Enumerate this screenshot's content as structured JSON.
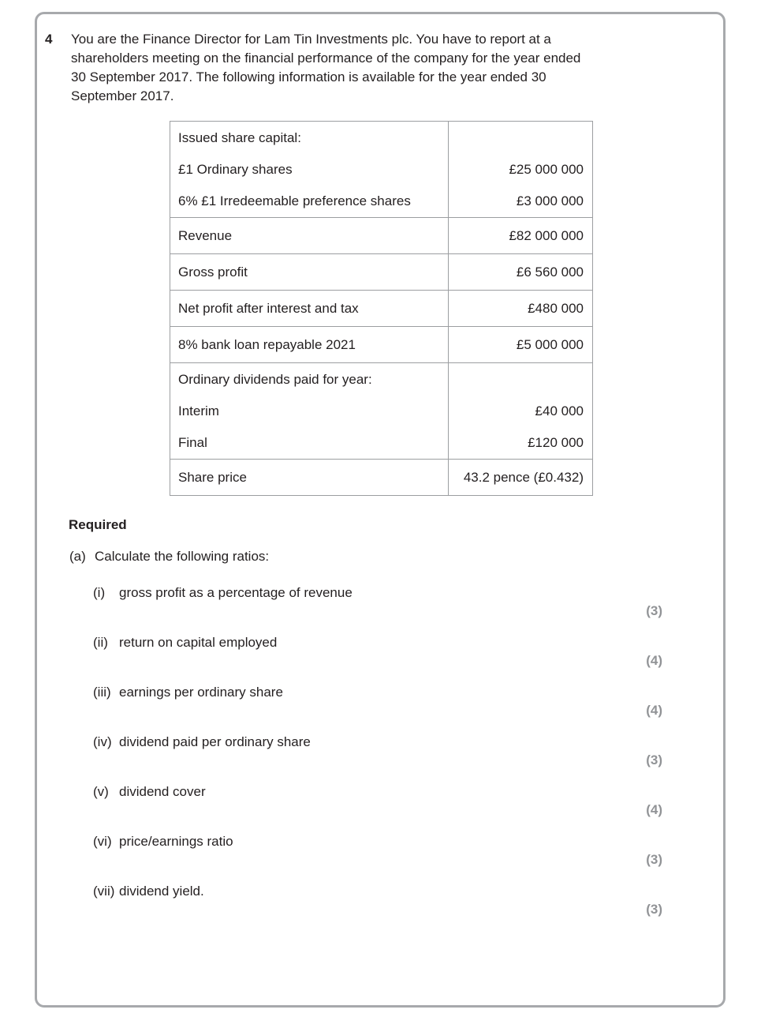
{
  "question": {
    "number": "4",
    "intro": "You are the Finance Director for Lam Tin Investments plc. You have to report at a shareholders meeting on the financial performance of the company for the year ended 30 September 2017. The following information is available for the year ended 30 September 2017."
  },
  "table": {
    "rows": [
      {
        "lines": [
          {
            "label": "Issued share capital:",
            "value": ""
          },
          {
            "label": "£1 Ordinary shares",
            "value": "£25 000 000"
          },
          {
            "label": "6% £1 Irredeemable preference shares",
            "value": "£3 000 000"
          }
        ]
      },
      {
        "lines": [
          {
            "label": "Revenue",
            "value": "£82 000 000"
          }
        ]
      },
      {
        "lines": [
          {
            "label": "Gross profit",
            "value": "£6 560 000"
          }
        ]
      },
      {
        "lines": [
          {
            "label": "Net profit after interest and tax",
            "value": "£480 000"
          }
        ]
      },
      {
        "lines": [
          {
            "label": "8% bank loan repayable 2021",
            "value": "£5 000 000"
          }
        ]
      },
      {
        "lines": [
          {
            "label": "Ordinary dividends paid for year:",
            "value": ""
          },
          {
            "label": "Interim",
            "value": "£40 000"
          },
          {
            "label": "Final",
            "value": "£120 000"
          }
        ]
      },
      {
        "lines": [
          {
            "label": "Share price",
            "value": "43.2 pence (£0.432)"
          }
        ]
      }
    ]
  },
  "required": {
    "heading": "Required",
    "part": {
      "num": "(a)",
      "text": "Calculate the following ratios:"
    },
    "items": [
      {
        "num": "(i)",
        "text": "gross profit as a percentage of revenue",
        "marks": "(3)"
      },
      {
        "num": "(ii)",
        "text": "return on capital employed",
        "marks": "(4)"
      },
      {
        "num": "(iii)",
        "text": "earnings per ordinary share",
        "marks": "(4)"
      },
      {
        "num": "(iv)",
        "text": "dividend paid per ordinary share",
        "marks": "(3)"
      },
      {
        "num": "(v)",
        "text": "dividend cover",
        "marks": "(4)"
      },
      {
        "num": "(vi)",
        "text": "price/earnings ratio",
        "marks": "(3)"
      },
      {
        "num": "(vii)",
        "text": "dividend yield.",
        "marks": "(3)"
      }
    ]
  },
  "colors": {
    "text": "#231f20",
    "marks": "#919396",
    "frame_border": "#a7a9ac",
    "table_border": "#9c9ea1",
    "background": "#ffffff"
  }
}
